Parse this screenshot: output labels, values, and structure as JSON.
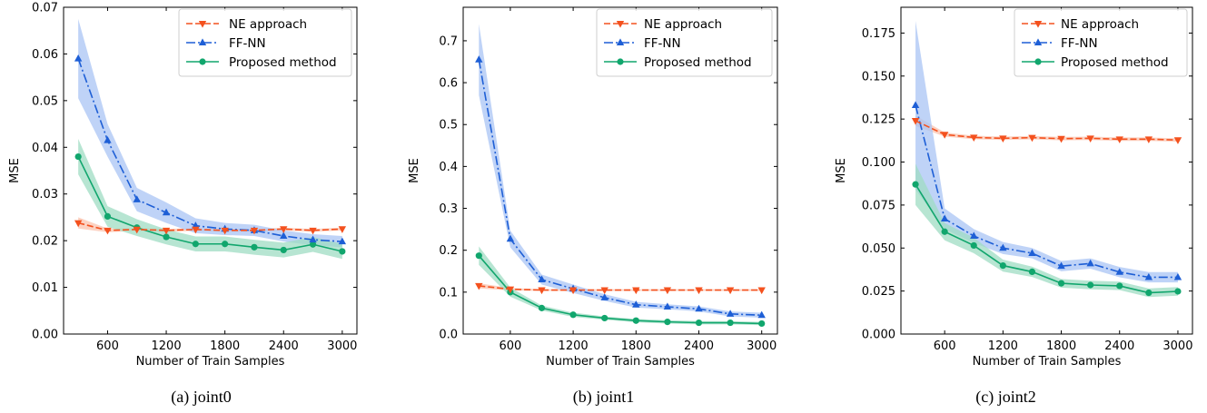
{
  "colors": {
    "ne": "#f4511e",
    "ffnn": "#1e5fd6",
    "proposed": "#11a66d",
    "ffnn_band": "#a9c4f4",
    "proposed_band": "#9fdcc3",
    "ne_band": "#fbc3ad"
  },
  "legend_labels": [
    "NE approach",
    "FF-NN",
    "Proposed method"
  ],
  "panels": [
    {
      "caption": "(a) joint0"
    },
    {
      "caption": "(b) joint1"
    },
    {
      "caption": "(c) joint2"
    }
  ],
  "chart_data": [
    {
      "type": "line",
      "xlabel": "Number of Train Samples",
      "ylabel": "MSE",
      "xlim": [
        150,
        3150
      ],
      "ylim": [
        0,
        0.07
      ],
      "xticks": [
        600,
        1200,
        1800,
        2400,
        3000
      ],
      "xtick_labels": [
        "600",
        "1200",
        "1800",
        "2400",
        "3000"
      ],
      "yticks": [
        0,
        0.01,
        0.02,
        0.03,
        0.04,
        0.05,
        0.06,
        0.07
      ],
      "ytick_labels": [
        "0.00",
        "0.01",
        "0.02",
        "0.03",
        "0.04",
        "0.05",
        "0.06",
        "0.07"
      ],
      "legend_position": "upper right",
      "grid": false,
      "x": [
        300,
        600,
        900,
        1200,
        1500,
        1800,
        2100,
        2400,
        2700,
        3000
      ],
      "series": [
        {
          "name": "NE approach",
          "marker": "triangle-down",
          "linestyle": "dashed",
          "values": [
            0.0238,
            0.0222,
            0.0224,
            0.0222,
            0.0224,
            0.0222,
            0.0222,
            0.0225,
            0.0222,
            0.0225
          ],
          "band": [
            0.0012,
            0.0004,
            0.0003,
            0.0003,
            0.0003,
            0.0003,
            0.0003,
            0.0003,
            0.0003,
            0.0003
          ]
        },
        {
          "name": "FF-NN",
          "marker": "triangle-up",
          "linestyle": "dashdot",
          "values": [
            0.059,
            0.0415,
            0.0288,
            0.026,
            0.0232,
            0.0225,
            0.0222,
            0.021,
            0.0202,
            0.0198
          ],
          "band": [
            0.0085,
            0.0035,
            0.0025,
            0.0022,
            0.0016,
            0.0013,
            0.0012,
            0.0012,
            0.0012,
            0.0012
          ]
        },
        {
          "name": "Proposed method",
          "marker": "circle",
          "linestyle": "solid",
          "values": [
            0.038,
            0.0252,
            0.0228,
            0.0208,
            0.0193,
            0.0193,
            0.0186,
            0.018,
            0.0192,
            0.0177
          ],
          "band": [
            0.0038,
            0.0022,
            0.0018,
            0.0016,
            0.0016,
            0.0016,
            0.0016,
            0.0016,
            0.0016,
            0.0016
          ]
        }
      ]
    },
    {
      "type": "line",
      "xlabel": "Number of Train Samples",
      "ylabel": "MSE",
      "xlim": [
        150,
        3150
      ],
      "ylim": [
        0,
        0.78
      ],
      "xticks": [
        600,
        1200,
        1800,
        2400,
        3000
      ],
      "xtick_labels": [
        "600",
        "1200",
        "1800",
        "2400",
        "3000"
      ],
      "yticks": [
        0,
        0.1,
        0.2,
        0.3,
        0.4,
        0.5,
        0.6,
        0.7
      ],
      "ytick_labels": [
        "0.0",
        "0.1",
        "0.2",
        "0.3",
        "0.4",
        "0.5",
        "0.6",
        "0.7"
      ],
      "legend_position": "upper right",
      "grid": false,
      "x": [
        300,
        600,
        900,
        1200,
        1500,
        1800,
        2100,
        2400,
        2700,
        3000
      ],
      "series": [
        {
          "name": "NE approach",
          "marker": "triangle-down",
          "linestyle": "dashed",
          "values": [
            0.115,
            0.107,
            0.105,
            0.105,
            0.105,
            0.105,
            0.105,
            0.105,
            0.105,
            0.105
          ],
          "band": [
            0.006,
            0.003,
            0.002,
            0.002,
            0.002,
            0.002,
            0.002,
            0.002,
            0.002,
            0.002
          ]
        },
        {
          "name": "FF-NN",
          "marker": "triangle-up",
          "linestyle": "dashdot",
          "values": [
            0.655,
            0.227,
            0.13,
            0.108,
            0.087,
            0.07,
            0.065,
            0.06,
            0.048,
            0.045
          ],
          "band": [
            0.085,
            0.02,
            0.012,
            0.01,
            0.008,
            0.007,
            0.006,
            0.006,
            0.006,
            0.006
          ]
        },
        {
          "name": "Proposed method",
          "marker": "circle",
          "linestyle": "solid",
          "values": [
            0.187,
            0.1,
            0.062,
            0.046,
            0.038,
            0.032,
            0.029,
            0.027,
            0.027,
            0.025
          ],
          "band": [
            0.022,
            0.011,
            0.006,
            0.005,
            0.004,
            0.004,
            0.004,
            0.004,
            0.004,
            0.004
          ]
        }
      ]
    },
    {
      "type": "line",
      "xlabel": "Number of Train Samples",
      "ylabel": "MSE",
      "xlim": [
        150,
        3150
      ],
      "ylim": [
        0,
        0.19
      ],
      "xticks": [
        600,
        1200,
        1800,
        2400,
        3000
      ],
      "xtick_labels": [
        "600",
        "1200",
        "1800",
        "2400",
        "3000"
      ],
      "yticks": [
        0,
        0.025,
        0.05,
        0.075,
        0.1,
        0.125,
        0.15,
        0.175
      ],
      "ytick_labels": [
        "0.000",
        "0.025",
        "0.050",
        "0.075",
        "0.100",
        "0.125",
        "0.150",
        "0.175"
      ],
      "legend_position": "upper right",
      "grid": false,
      "x": [
        300,
        600,
        900,
        1200,
        1500,
        1800,
        2100,
        2400,
        2700,
        3000
      ],
      "series": [
        {
          "name": "NE approach",
          "marker": "triangle-down",
          "linestyle": "dashed",
          "values": [
            0.124,
            0.116,
            0.1143,
            0.1138,
            0.1142,
            0.1136,
            0.1138,
            0.1133,
            0.1133,
            0.1128
          ],
          "band": [
            0.003,
            0.0012,
            0.001,
            0.001,
            0.001,
            0.001,
            0.001,
            0.001,
            0.001,
            0.001
          ]
        },
        {
          "name": "FF-NN",
          "marker": "triangle-up",
          "linestyle": "dashdot",
          "values": [
            0.133,
            0.067,
            0.057,
            0.05,
            0.047,
            0.0395,
            0.041,
            0.036,
            0.033,
            0.033
          ],
          "band": [
            0.049,
            0.006,
            0.004,
            0.0035,
            0.003,
            0.003,
            0.003,
            0.003,
            0.003,
            0.003
          ]
        },
        {
          "name": "Proposed method",
          "marker": "circle",
          "linestyle": "solid",
          "values": [
            0.087,
            0.0595,
            0.0515,
            0.0398,
            0.0362,
            0.0295,
            0.0285,
            0.028,
            0.024,
            0.0248
          ],
          "band": [
            0.012,
            0.005,
            0.0045,
            0.0035,
            0.003,
            0.0025,
            0.0025,
            0.0025,
            0.0025,
            0.0025
          ]
        }
      ]
    }
  ]
}
